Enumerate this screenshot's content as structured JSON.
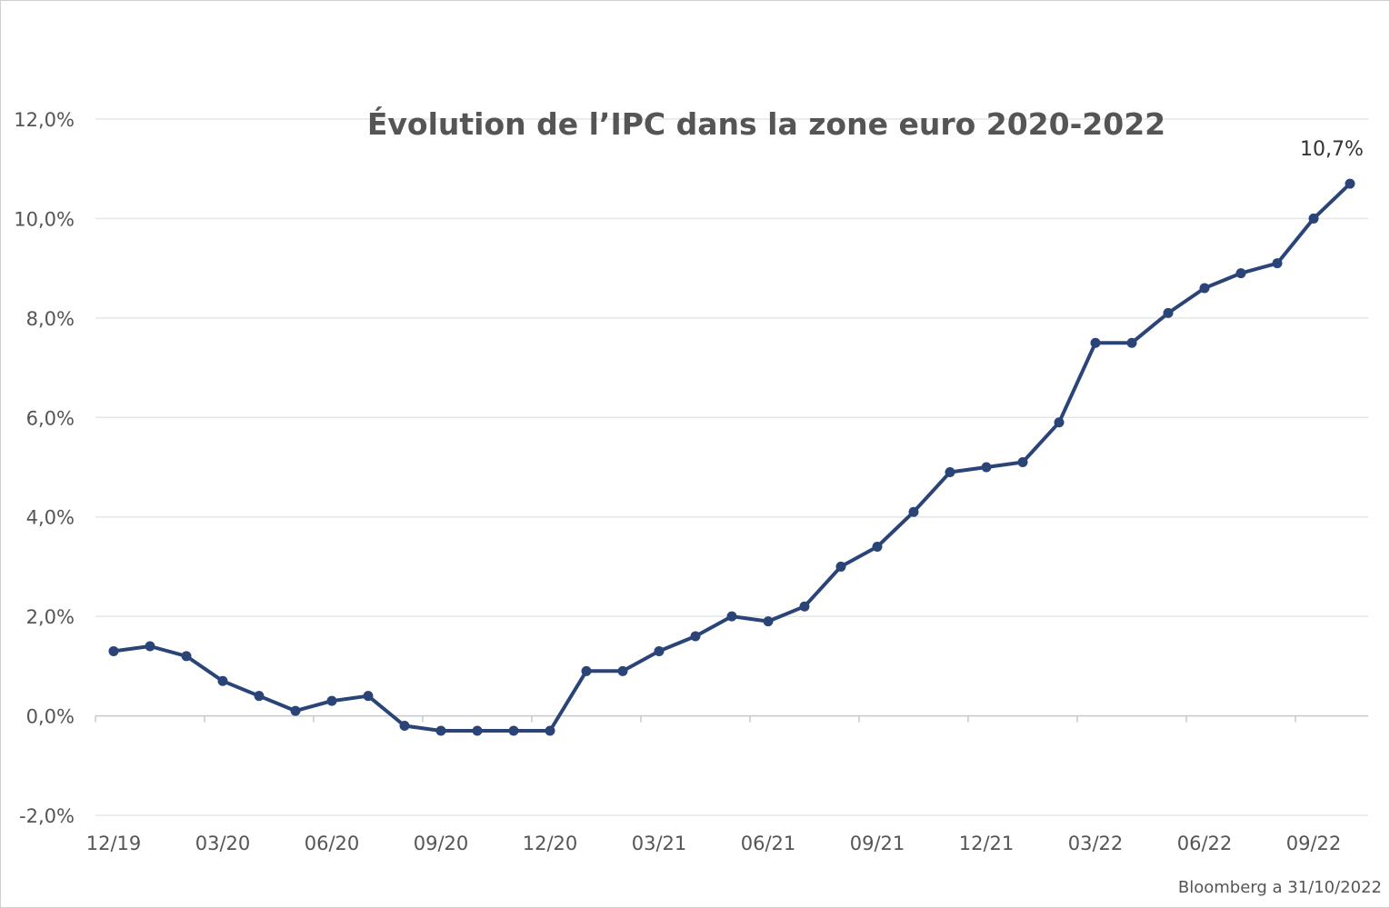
{
  "chart_data": {
    "type": "line",
    "title": "Évolution de l’IPC dans la zone euro 2020-2022",
    "source": "Bloomberg a 31/10/2022",
    "annotation": "10,7%",
    "ylim": [
      -2,
      12
    ],
    "yticks": [
      -2,
      0,
      2,
      4,
      6,
      8,
      10,
      12
    ],
    "ytick_labels": [
      "-2,0%",
      "0,0%",
      "2,0%",
      "4,0%",
      "6,0%",
      "8,0%",
      "10,0%",
      "12,0%"
    ],
    "grid": true,
    "xtick_labels": [
      "12/19",
      "03/20",
      "06/20",
      "09/20",
      "12/20",
      "03/21",
      "06/21",
      "09/21",
      "12/21",
      "03/22",
      "06/22",
      "09/22"
    ],
    "x": [
      "12/19",
      "01/20",
      "02/20",
      "03/20",
      "04/20",
      "05/20",
      "06/20",
      "07/20",
      "08/20",
      "09/20",
      "10/20",
      "11/20",
      "12/20",
      "01/21",
      "02/21",
      "03/21",
      "04/21",
      "05/21",
      "06/21",
      "07/21",
      "08/21",
      "09/21",
      "10/21",
      "11/21",
      "12/21",
      "01/22",
      "02/22",
      "03/22",
      "04/22",
      "05/22",
      "06/22",
      "07/22",
      "08/22",
      "09/22",
      "10/22"
    ],
    "series": [
      {
        "color": "#2b4478",
        "values": [
          1.3,
          1.4,
          1.2,
          0.7,
          0.4,
          0.1,
          0.3,
          0.4,
          -0.2,
          -0.3,
          -0.3,
          -0.3,
          -0.3,
          0.9,
          0.9,
          1.3,
          1.6,
          2.0,
          1.9,
          2.2,
          3.0,
          3.4,
          4.1,
          4.9,
          5.0,
          5.1,
          5.9,
          7.5,
          7.5,
          8.1,
          8.6,
          8.9,
          9.1,
          10.0,
          10.7
        ]
      }
    ]
  }
}
